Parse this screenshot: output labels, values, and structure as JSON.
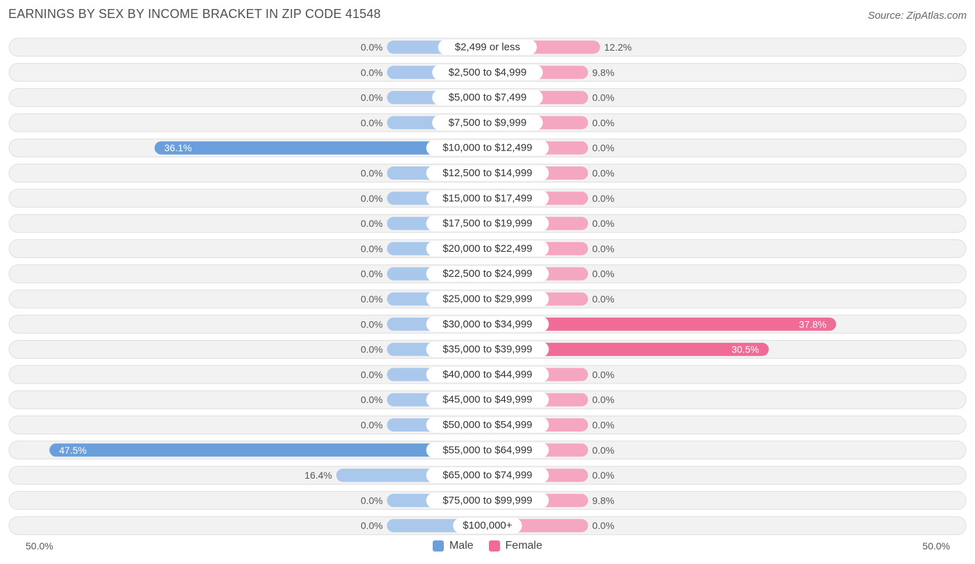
{
  "title": "EARNINGS BY SEX BY INCOME BRACKET IN ZIP CODE 41548",
  "source": "Source: ZipAtlas.com",
  "colors": {
    "male_strong": "#6a9fdc",
    "male_light": "#a9c8ec",
    "female_strong": "#f06b96",
    "female_light": "#f5a6c0",
    "row_bg": "#f2f2f2",
    "row_border": "#dedede"
  },
  "chart_data": {
    "type": "bar",
    "orientation": "horizontal-diverging",
    "title": "EARNINGS BY SEX BY INCOME BRACKET IN ZIP CODE 41548",
    "axis_min_label": "50.0%",
    "axis_max_label": "50.0%",
    "xlim": [
      -50,
      50
    ],
    "legend": [
      "Male",
      "Female"
    ],
    "legend_position": "bottom-center",
    "categories": [
      "$2,499 or less",
      "$2,500 to $4,999",
      "$5,000 to $7,499",
      "$7,500 to $9,999",
      "$10,000 to $12,499",
      "$12,500 to $14,999",
      "$15,000 to $17,499",
      "$17,500 to $19,999",
      "$20,000 to $22,499",
      "$22,500 to $24,999",
      "$25,000 to $29,999",
      "$30,000 to $34,999",
      "$35,000 to $39,999",
      "$40,000 to $44,999",
      "$45,000 to $49,999",
      "$50,000 to $54,999",
      "$55,000 to $64,999",
      "$65,000 to $74,999",
      "$75,000 to $99,999",
      "$100,000+"
    ],
    "series": [
      {
        "name": "Male",
        "values": [
          0.0,
          0.0,
          0.0,
          0.0,
          36.1,
          0.0,
          0.0,
          0.0,
          0.0,
          0.0,
          0.0,
          0.0,
          0.0,
          0.0,
          0.0,
          0.0,
          47.5,
          16.4,
          0.0,
          0.0
        ],
        "labels": [
          "0.0%",
          "0.0%",
          "0.0%",
          "0.0%",
          "36.1%",
          "0.0%",
          "0.0%",
          "0.0%",
          "0.0%",
          "0.0%",
          "0.0%",
          "0.0%",
          "0.0%",
          "0.0%",
          "0.0%",
          "0.0%",
          "47.5%",
          "16.4%",
          "0.0%",
          "0.0%"
        ]
      },
      {
        "name": "Female",
        "values": [
          12.2,
          9.8,
          0.0,
          0.0,
          0.0,
          0.0,
          0.0,
          0.0,
          0.0,
          0.0,
          0.0,
          37.8,
          30.5,
          0.0,
          0.0,
          0.0,
          0.0,
          0.0,
          9.8,
          0.0
        ],
        "labels": [
          "12.2%",
          "9.8%",
          "0.0%",
          "0.0%",
          "0.0%",
          "0.0%",
          "0.0%",
          "0.0%",
          "0.0%",
          "0.0%",
          "0.0%",
          "37.8%",
          "30.5%",
          "0.0%",
          "0.0%",
          "0.0%",
          "0.0%",
          "0.0%",
          "9.8%",
          "0.0%"
        ]
      }
    ]
  }
}
